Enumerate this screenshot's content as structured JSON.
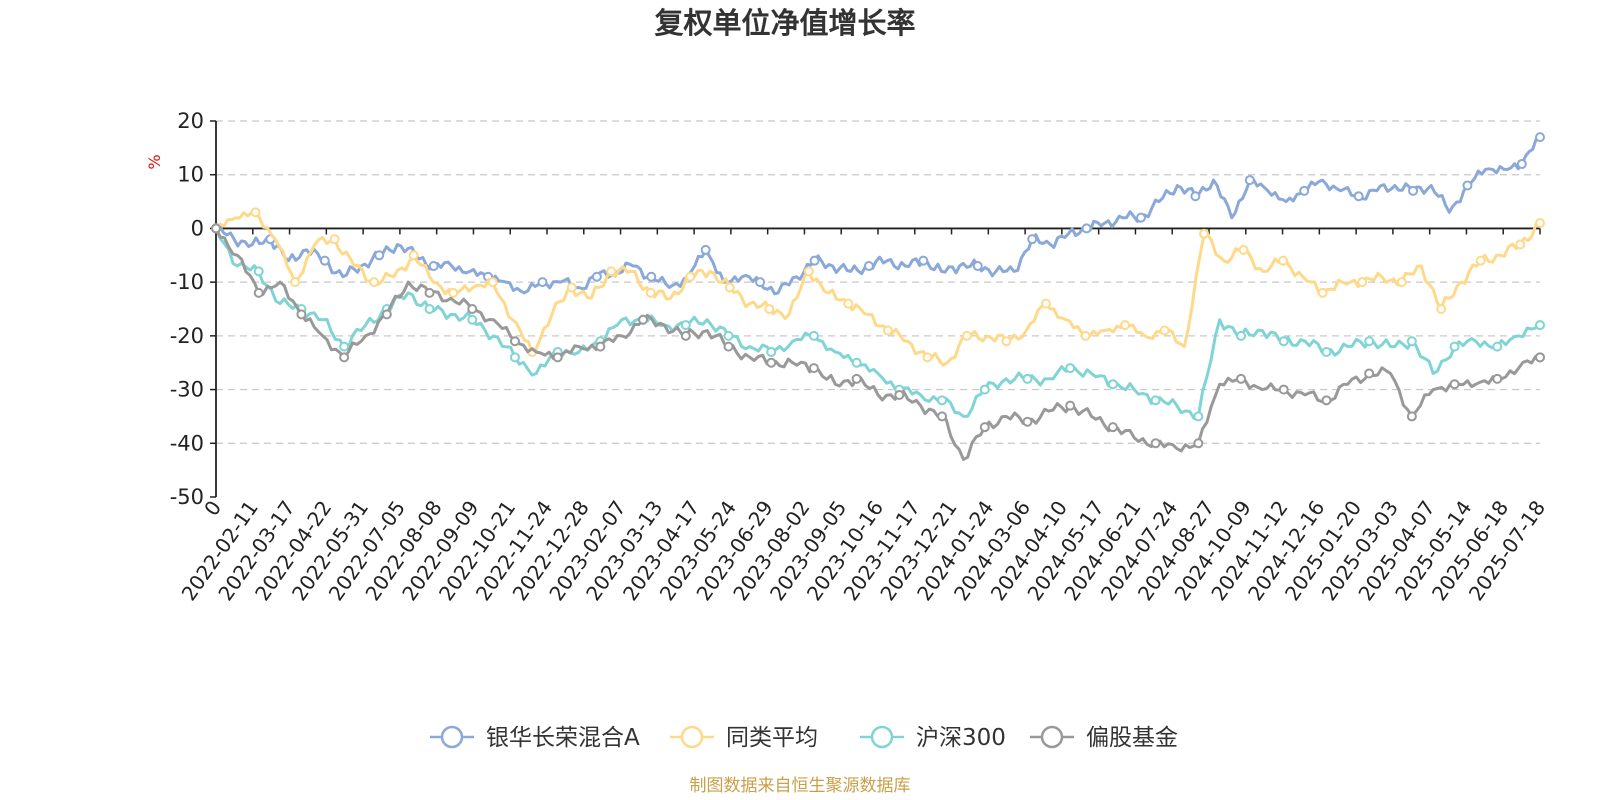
{
  "chart_data": {
    "type": "line",
    "title": "复权单位净值增长率",
    "ylabel": "%",
    "ylim": [
      -50,
      20
    ],
    "yticks": [
      20,
      10,
      0,
      -10,
      -20,
      -30,
      -40,
      -50
    ],
    "grid": true,
    "legend_position": "bottom",
    "x_start_label": "0",
    "x_labels": [
      "2022-02-11",
      "2022-03-17",
      "2022-04-22",
      "2022-05-31",
      "2022-07-05",
      "2022-08-08",
      "2022-09-09",
      "2022-10-21",
      "2022-11-24",
      "2022-12-28",
      "2023-02-07",
      "2023-03-13",
      "2023-04-17",
      "2023-05-24",
      "2023-06-29",
      "2023-08-02",
      "2023-09-05",
      "2023-10-16",
      "2023-11-17",
      "2023-12-21",
      "2024-01-24",
      "2024-03-06",
      "2024-04-10",
      "2024-05-17",
      "2024-06-21",
      "2024-07-24",
      "2024-08-27",
      "2024-10-09",
      "2024-11-12",
      "2024-12-16",
      "2025-01-20",
      "2025-03-03",
      "2025-04-07",
      "2025-05-14",
      "2025-06-18",
      "2025-07-18"
    ],
    "series": [
      {
        "name": "银华长荣混合A",
        "color": "#8aa8d8",
        "values": [
          0,
          -2,
          -3,
          -2,
          -6,
          -4,
          -6,
          -9,
          -7,
          -5,
          -3,
          -5,
          -7,
          -7,
          -8,
          -9,
          -10,
          -12,
          -10,
          -10,
          -11,
          -9,
          -8,
          -7,
          -9,
          -11,
          -9,
          -4,
          -10,
          -9,
          -10,
          -12,
          -9,
          -6,
          -7,
          -8,
          -7,
          -6,
          -7,
          -6,
          -8,
          -7,
          -7,
          -8,
          -8,
          -2,
          -3,
          -1,
          0,
          1,
          2,
          2,
          5,
          8,
          6,
          9,
          2,
          9,
          7,
          5,
          7,
          9,
          7,
          6,
          7,
          8,
          7,
          8,
          3,
          8,
          11,
          11,
          12,
          17
        ]
      },
      {
        "name": "同类平均",
        "color": "#ffd98a",
        "values": [
          0,
          2,
          3,
          -2,
          -10,
          -3,
          -2,
          -7,
          -10,
          -9,
          -5,
          -10,
          -12,
          -11,
          -10,
          -17,
          -23,
          -16,
          -11,
          -13,
          -8,
          -8,
          -12,
          -13,
          -9,
          -8,
          -11,
          -14,
          -15,
          -16,
          -8,
          -12,
          -14,
          -16,
          -19,
          -21,
          -24,
          -25,
          -20,
          -20,
          -21,
          -19,
          -14,
          -17,
          -20,
          -19,
          -18,
          -20,
          -19,
          -22,
          -1,
          -6,
          -4,
          -8,
          -6,
          -9,
          -12,
          -10,
          -10,
          -9,
          -10,
          -7,
          -15,
          -10,
          -6,
          -5,
          -3,
          1
        ]
      },
      {
        "name": "沪深300",
        "color": "#80d4d4",
        "values": [
          0,
          -7,
          -8,
          -14,
          -15,
          -17,
          -22,
          -18,
          -15,
          -12,
          -15,
          -16,
          -17,
          -20,
          -24,
          -27,
          -23,
          -23,
          -21,
          -17,
          -17,
          -18,
          -18,
          -17,
          -20,
          -22,
          -23,
          -21,
          -20,
          -23,
          -25,
          -27,
          -30,
          -31,
          -32,
          -35,
          -30,
          -28,
          -28,
          -28,
          -26,
          -27,
          -29,
          -30,
          -32,
          -33,
          -35,
          -17,
          -20,
          -19,
          -21,
          -21,
          -23,
          -22,
          -21,
          -22,
          -21,
          -27,
          -22,
          -21,
          -22,
          -20,
          -18
        ]
      },
      {
        "name": "偏股基金",
        "color": "#999999",
        "values": [
          0,
          -5,
          -12,
          -10,
          -16,
          -20,
          -24,
          -20,
          -16,
          -10,
          -12,
          -13,
          -15,
          -17,
          -21,
          -23,
          -24,
          -22,
          -22,
          -20,
          -17,
          -18,
          -20,
          -19,
          -22,
          -24,
          -25,
          -25,
          -26,
          -29,
          -28,
          -31,
          -31,
          -33,
          -35,
          -43,
          -37,
          -35,
          -36,
          -34,
          -33,
          -35,
          -37,
          -39,
          -40,
          -41,
          -40,
          -29,
          -28,
          -30,
          -30,
          -31,
          -32,
          -29,
          -27,
          -27,
          -35,
          -30,
          -29,
          -29,
          -28,
          -26,
          -24
        ]
      }
    ],
    "source_text": "制图数据来自恒生聚源数据库",
    "source_color": "#c8a04a"
  }
}
